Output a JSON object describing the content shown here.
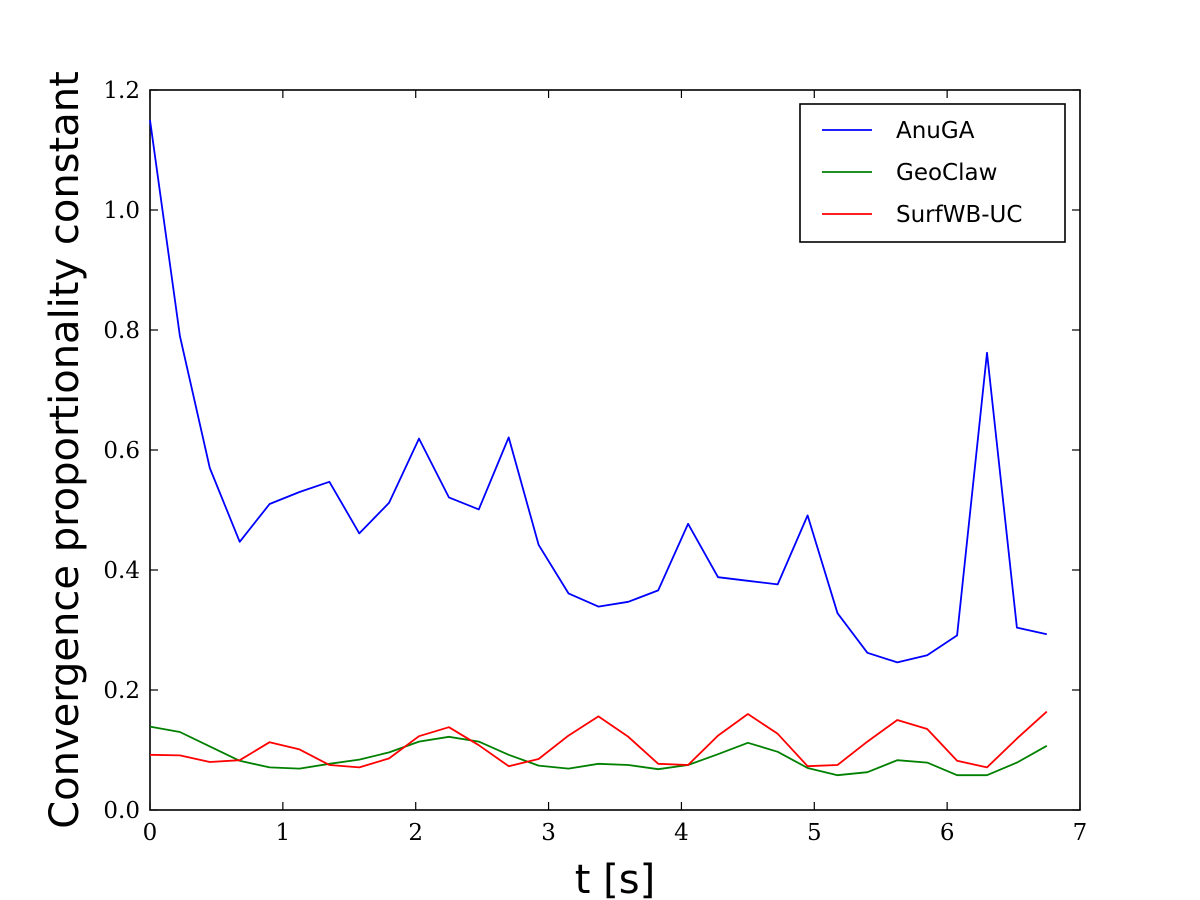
{
  "chart_data": {
    "type": "line",
    "xlabel": "t [s]",
    "ylabel": "Convergence proportionality constant",
    "xlim": [
      0,
      7
    ],
    "ylim": [
      0,
      1.2
    ],
    "xticks": [
      "0",
      "1",
      "2",
      "3",
      "4",
      "5",
      "6",
      "7"
    ],
    "yticks": [
      "0.0",
      "0.2",
      "0.4",
      "0.6",
      "0.8",
      "1.0",
      "1.2"
    ],
    "grid": false,
    "legend_position": "top-right",
    "x": [
      0,
      0.225,
      0.45,
      0.675,
      0.9,
      1.125,
      1.35,
      1.575,
      1.8,
      2.025,
      2.25,
      2.475,
      2.7,
      2.925,
      3.15,
      3.375,
      3.6,
      3.825,
      4.05,
      4.275,
      4.5,
      4.725,
      4.95,
      5.175,
      5.4,
      5.625,
      5.85,
      6.075,
      6.3,
      6.525,
      6.75
    ],
    "series": [
      {
        "name": "AnuGA",
        "color": "#0000ff",
        "values": [
          1.15,
          0.79,
          0.57,
          0.447,
          0.51,
          0.53,
          0.547,
          0.461,
          0.512,
          0.619,
          0.521,
          0.501,
          0.621,
          0.442,
          0.361,
          0.339,
          0.347,
          0.366,
          0.477,
          0.388,
          0.382,
          0.376,
          0.491,
          0.328,
          0.262,
          0.246,
          0.258,
          0.291,
          0.762,
          0.304,
          0.293
        ]
      },
      {
        "name": "GeoClaw",
        "color": "#008000",
        "values": [
          0.139,
          0.13,
          0.106,
          0.082,
          0.071,
          0.069,
          0.077,
          0.084,
          0.096,
          0.114,
          0.122,
          0.114,
          0.092,
          0.074,
          0.069,
          0.077,
          0.075,
          0.068,
          0.075,
          0.093,
          0.112,
          0.097,
          0.07,
          0.058,
          0.063,
          0.083,
          0.079,
          0.058,
          0.058,
          0.079,
          0.107
        ]
      },
      {
        "name": "SurfWB-UC",
        "color": "#ff0000",
        "values": [
          0.092,
          0.091,
          0.08,
          0.083,
          0.113,
          0.101,
          0.075,
          0.071,
          0.086,
          0.123,
          0.138,
          0.108,
          0.073,
          0.085,
          0.124,
          0.156,
          0.122,
          0.077,
          0.075,
          0.124,
          0.16,
          0.127,
          0.073,
          0.075,
          0.114,
          0.15,
          0.135,
          0.082,
          0.071,
          0.119,
          0.164
        ]
      }
    ]
  }
}
